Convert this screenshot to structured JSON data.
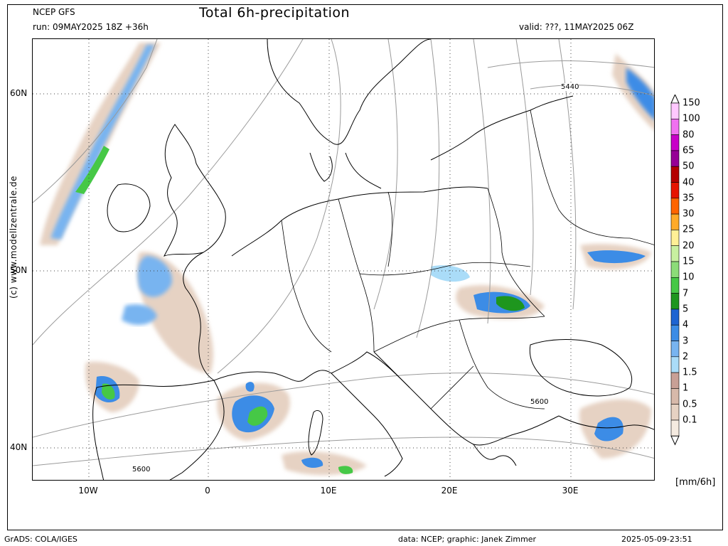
{
  "header": {
    "model": "NCEP GFS",
    "run": "run: 09MAY2025 18Z +36h",
    "title": "Total 6h-precipitation",
    "valid": "valid: ???, 11MAY2025 06Z"
  },
  "map": {
    "latitude_labels": [
      "60N",
      "50N",
      "40N"
    ],
    "longitude_labels": [
      "10W",
      "0",
      "10E",
      "20E",
      "30E"
    ],
    "isobar_labels": [
      "5440",
      "5600",
      "5600"
    ],
    "credit": "(c) www.modellzentrale.de"
  },
  "legend": {
    "units": "[mm/6h]",
    "levels": [
      {
        "label": "150",
        "color": "#ffc8ff"
      },
      {
        "label": "100",
        "color": "#f070f0"
      },
      {
        "label": "80",
        "color": "#c800c8"
      },
      {
        "label": "65",
        "color": "#960096"
      },
      {
        "label": "50",
        "color": "#b40000"
      },
      {
        "label": "40",
        "color": "#e61400"
      },
      {
        "label": "35",
        "color": "#ff6400"
      },
      {
        "label": "30",
        "color": "#ffaa28"
      },
      {
        "label": "25",
        "color": "#fff096"
      },
      {
        "label": "20",
        "color": "#c8f0a0"
      },
      {
        "label": "15",
        "color": "#8cdc78"
      },
      {
        "label": "10",
        "color": "#46c846"
      },
      {
        "label": "7",
        "color": "#1e961e"
      },
      {
        "label": "5",
        "color": "#1e64d2"
      },
      {
        "label": "4",
        "color": "#3c8ce6"
      },
      {
        "label": "3",
        "color": "#78b4f0"
      },
      {
        "label": "2",
        "color": "#aadcf8"
      },
      {
        "label": "1.5",
        "color": "#c8a096"
      },
      {
        "label": "1",
        "color": "#d7b9aa"
      },
      {
        "label": "0.5",
        "color": "#e6d2c3"
      },
      {
        "label": "0.1",
        "color": "#f5ebe1"
      }
    ]
  },
  "footer": {
    "left": "GrADS: COLA/IGES",
    "center": "data: NCEP; graphic: Janek Zimmer",
    "right": "2025-05-09-23:51"
  }
}
